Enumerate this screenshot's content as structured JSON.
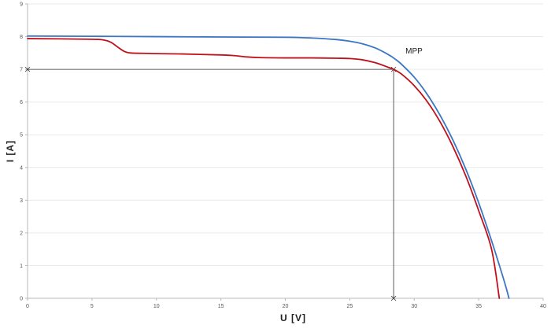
{
  "chart_data": {
    "type": "line",
    "title": "",
    "xlabel": "U [V]",
    "ylabel": "I [A]",
    "xlim": [
      0,
      40
    ],
    "ylim": [
      0,
      9
    ],
    "xticks": [
      0,
      5,
      10,
      15,
      20,
      25,
      30,
      35,
      40
    ],
    "yticks": [
      0,
      1,
      2,
      3,
      4,
      5,
      6,
      7,
      8,
      9
    ],
    "grid": true,
    "legend": "none",
    "series": [
      {
        "color": "#3a76c4",
        "x": [
          0,
          5,
          10,
          15,
          20,
          22,
          24,
          25,
          26,
          27,
          28,
          28.5,
          29,
          30,
          31,
          32,
          33,
          34,
          35,
          36,
          37,
          37.35
        ],
        "y": [
          8.02,
          8.01,
          8.0,
          7.99,
          7.98,
          7.96,
          7.91,
          7.86,
          7.78,
          7.65,
          7.45,
          7.32,
          7.16,
          6.76,
          6.24,
          5.6,
          4.84,
          3.95,
          2.92,
          1.76,
          0.5,
          0
        ]
      },
      {
        "color": "#c0101b",
        "x": [
          0,
          5,
          6,
          6.5,
          7,
          7.5,
          8,
          9,
          10,
          12,
          15,
          16,
          17,
          18,
          20,
          22,
          24,
          25,
          26,
          27,
          28,
          28.4,
          29,
          30,
          31,
          32,
          33,
          34,
          35,
          36,
          36.6
        ],
        "y": [
          7.94,
          7.92,
          7.89,
          7.82,
          7.68,
          7.55,
          7.5,
          7.49,
          7.48,
          7.47,
          7.44,
          7.42,
          7.38,
          7.36,
          7.35,
          7.35,
          7.34,
          7.33,
          7.29,
          7.2,
          7.06,
          7.0,
          6.86,
          6.5,
          6.02,
          5.4,
          4.64,
          3.74,
          2.68,
          1.5,
          0
        ]
      }
    ],
    "annotations": [
      {
        "text": "MPP",
        "x": 29.2,
        "y": 7.2
      }
    ],
    "mpp": {
      "x": 28.4,
      "y": 7.0
    }
  }
}
